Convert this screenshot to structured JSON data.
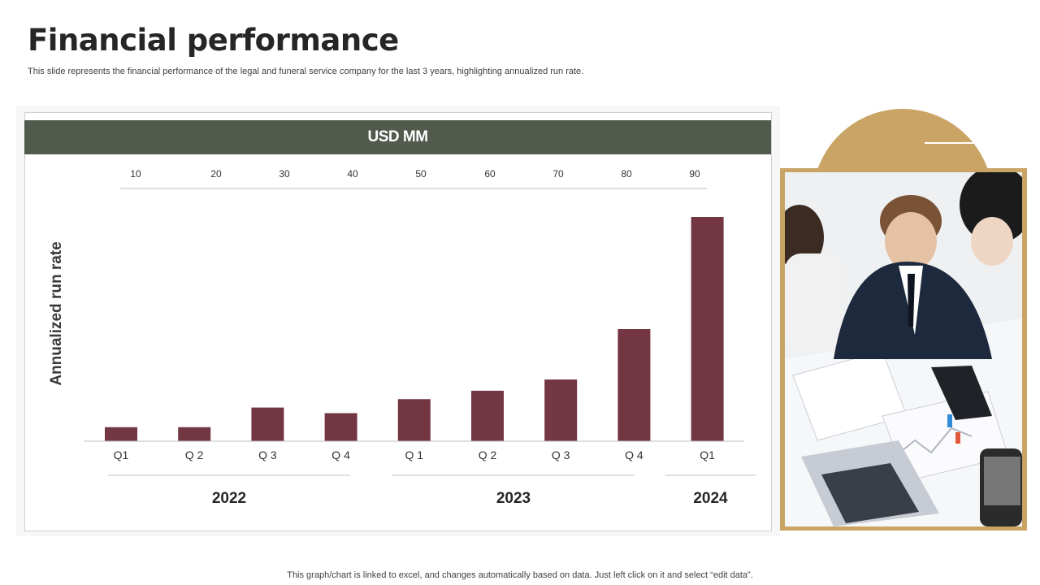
{
  "slide": {
    "title": "Financial performance",
    "subtitle": "This slide represents the financial performance of the legal and funeral service company for the last 3 years, highlighting annualized run rate.",
    "footer": "This graph/chart is linked to excel,  and changes automatically based on data. Just left click on it and select “edit data”."
  },
  "colors": {
    "bar": "#733643",
    "band": "#525a4e",
    "accent": "#c9a465"
  },
  "chart_data": {
    "type": "bar",
    "title": "USD MM",
    "ylabel": "Annualized run rate",
    "scale_ticks": [
      "10",
      "20",
      "30",
      "40",
      "50",
      "60",
      "70",
      "80",
      "90"
    ],
    "categories": [
      "Q1",
      "Q 2",
      "Q 3",
      "Q 4",
      "Q 1",
      "Q 2",
      "Q 3",
      "Q 4",
      "Q1"
    ],
    "values": [
      5,
      5,
      12,
      10,
      15,
      18,
      22,
      40,
      80
    ],
    "groups": [
      {
        "label": "2022",
        "count": 4
      },
      {
        "label": "2023",
        "count": 4
      },
      {
        "label": "2024",
        "count": 1
      }
    ],
    "ylim": [
      0,
      90
    ]
  },
  "photo": {
    "icon": "business-meeting-photo"
  }
}
